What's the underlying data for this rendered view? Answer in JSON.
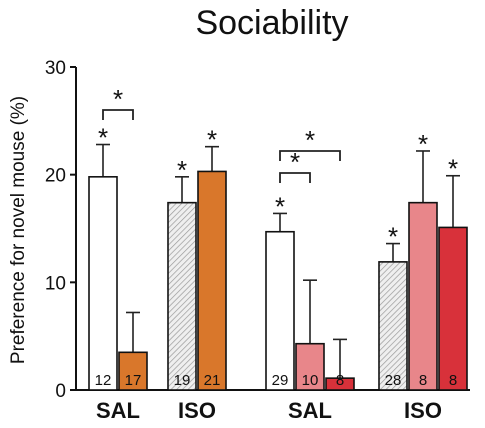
{
  "chart_data": {
    "type": "bar",
    "title": "Sociability",
    "ylabel": "Preference for novel mouse (%)",
    "xlabel": "",
    "ylim": [
      0,
      30
    ],
    "yticks": [
      0,
      10,
      20,
      30
    ],
    "groups": [
      "SAL",
      "ISO",
      "SAL",
      "ISO"
    ],
    "bars": [
      {
        "group": 0,
        "value": 19.8,
        "error": 3.0,
        "n": "12",
        "fill": "#ffffff",
        "hatch": false,
        "star": true
      },
      {
        "group": 0,
        "value": 3.5,
        "error": 3.7,
        "n": "17",
        "fill": "#d9772b",
        "hatch": false,
        "star": false
      },
      {
        "group": 1,
        "value": 17.4,
        "error": 2.4,
        "n": "19",
        "fill": "#e8e8e8",
        "hatch": true,
        "star": true
      },
      {
        "group": 1,
        "value": 20.3,
        "error": 2.3,
        "n": "21",
        "fill": "#d9772b",
        "hatch": false,
        "star": true
      },
      {
        "group": 2,
        "value": 14.7,
        "error": 1.7,
        "n": "29",
        "fill": "#ffffff",
        "hatch": false,
        "star": true
      },
      {
        "group": 2,
        "value": 4.3,
        "error": 5.9,
        "n": "10",
        "fill": "#e8868a",
        "hatch": false,
        "star": false
      },
      {
        "group": 2,
        "value": 1.1,
        "error": 3.6,
        "n": "8",
        "fill": "#d8313a",
        "hatch": false,
        "star": false
      },
      {
        "group": 3,
        "value": 11.9,
        "error": 1.7,
        "n": "28",
        "fill": "#e8e8e8",
        "hatch": true,
        "star": true
      },
      {
        "group": 3,
        "value": 17.4,
        "error": 4.8,
        "n": "8",
        "fill": "#e8868a",
        "hatch": false,
        "star": true
      },
      {
        "group": 3,
        "value": 15.1,
        "error": 4.8,
        "n": "8",
        "fill": "#d8313a",
        "hatch": false,
        "star": true
      }
    ],
    "comparisons": [
      {
        "from": 0,
        "to": 1,
        "label": "*"
      },
      {
        "from": 4,
        "to": 5,
        "label": "*"
      },
      {
        "from": 4,
        "to": 6,
        "label": "*"
      }
    ],
    "significance_marker": "*",
    "grid": false,
    "legend": "none"
  }
}
